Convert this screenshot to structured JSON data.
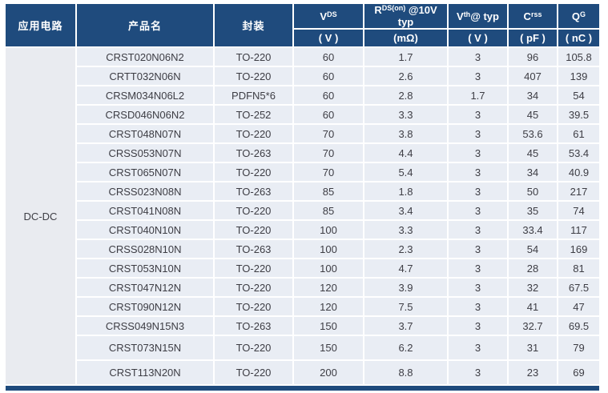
{
  "colors": {
    "header_bg": "#1f4b7d",
    "header_text": "#ffffff",
    "row_bg": "#e9edf4",
    "app_col_bg": "#e9ebf0",
    "text_color": "#3d3d44"
  },
  "header": {
    "app_circuit": "应用电路",
    "product": "产品名",
    "package": "封装",
    "params": [
      {
        "base": "V",
        "sup": "DS",
        "rest": "",
        "unit": "( V )"
      },
      {
        "base": "R",
        "sup": "DS(on)",
        "rest": " @10V typ",
        "unit": "(mΩ)"
      },
      {
        "base": "V",
        "sup": "th",
        "rest": "@ typ",
        "unit": "( V )"
      },
      {
        "base": "C",
        "sup": "rss",
        "rest": "",
        "unit": "( pF )"
      },
      {
        "base": "Q",
        "sup": "G",
        "rest": "",
        "unit": "( nC )"
      }
    ]
  },
  "application": "DC-DC",
  "rows": [
    {
      "name": "CRST020N06N2",
      "package": "TO-220",
      "vds": "60",
      "rdson": "1.7",
      "vth": "3",
      "crss": "96",
      "qg": "105.8"
    },
    {
      "name": "CRTT032N06N",
      "package": "TO-220",
      "vds": "60",
      "rdson": "2.6",
      "vth": "3",
      "crss": "407",
      "qg": "139"
    },
    {
      "name": "CRSM034N06L2",
      "package": "PDFN5*6",
      "vds": "60",
      "rdson": "2.8",
      "vth": "1.7",
      "crss": "34",
      "qg": "54"
    },
    {
      "name": "CRSD046N06N2",
      "package": "TO-252",
      "vds": "60",
      "rdson": "3.3",
      "vth": "3",
      "crss": "45",
      "qg": "39.5"
    },
    {
      "name": "CRST048N07N",
      "package": "TO-220",
      "vds": "70",
      "rdson": "3.8",
      "vth": "3",
      "crss": "53.6",
      "qg": "61"
    },
    {
      "name": "CRSS053N07N",
      "package": "TO-263",
      "vds": "70",
      "rdson": "4.4",
      "vth": "3",
      "crss": "45",
      "qg": "53.4"
    },
    {
      "name": "CRST065N07N",
      "package": "TO-220",
      "vds": "70",
      "rdson": "5.4",
      "vth": "3",
      "crss": "34",
      "qg": "40.9"
    },
    {
      "name": "CRSS023N08N",
      "package": "TO-263",
      "vds": "85",
      "rdson": "1.8",
      "vth": "3",
      "crss": "50",
      "qg": "217"
    },
    {
      "name": "CRST041N08N",
      "package": "TO-220",
      "vds": "85",
      "rdson": "3.4",
      "vth": "3",
      "crss": "35",
      "qg": "74"
    },
    {
      "name": "CRST040N10N",
      "package": "TO-220",
      "vds": "100",
      "rdson": "3.3",
      "vth": "3",
      "crss": "33.4",
      "qg": "117"
    },
    {
      "name": "CRSS028N10N",
      "package": "TO-263",
      "vds": "100",
      "rdson": "2.3",
      "vth": "3",
      "crss": "54",
      "qg": "169"
    },
    {
      "name": "CRST053N10N",
      "package": "TO-220",
      "vds": "100",
      "rdson": "4.7",
      "vth": "3",
      "crss": "28",
      "qg": "81"
    },
    {
      "name": "CRST047N12N",
      "package": "TO-220",
      "vds": "120",
      "rdson": "3.9",
      "vth": "3",
      "crss": "32",
      "qg": "67.5"
    },
    {
      "name": "CRST090N12N",
      "package": "TO-220",
      "vds": "120",
      "rdson": "7.5",
      "vth": "3",
      "crss": "41",
      "qg": "47"
    },
    {
      "name": "CRSS049N15N3",
      "package": "TO-263",
      "vds": "150",
      "rdson": "3.7",
      "vth": "3",
      "crss": "32.7",
      "qg": "69.5"
    },
    {
      "name": "CRST073N15N",
      "package": "TO-220",
      "vds": "150",
      "rdson": "6.2",
      "vth": "3",
      "crss": "31",
      "qg": "79"
    },
    {
      "name": "CRST113N20N",
      "package": "TO-220",
      "vds": "200",
      "rdson": "8.8",
      "vth": "3",
      "crss": "23",
      "qg": "69"
    }
  ]
}
